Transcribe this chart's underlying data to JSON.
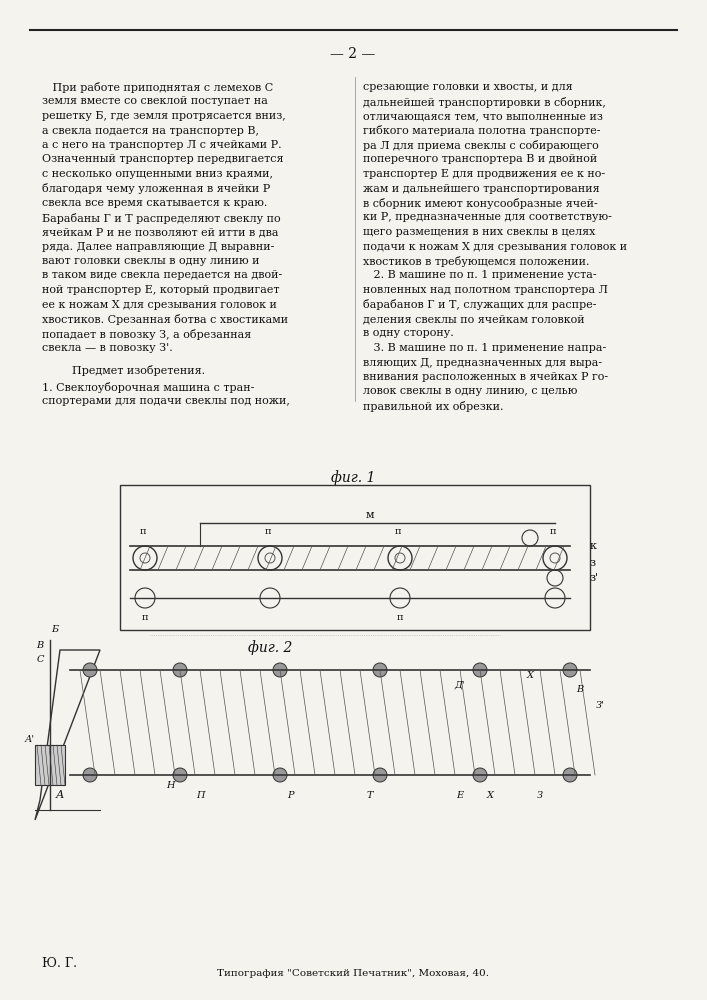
{
  "page_number": "2",
  "bg_color": "#f5f3ee",
  "top_line_color": "#222222",
  "text_color": "#111111",
  "left_column_text": [
    "   При работе приподнятая с лемехов С",
    "земля вместе со свеклой поступает на",
    "решетку Б, где земля протрясается вниз,",
    "а свекла подается на транспортер В,",
    "а с него на транспортер Л с ячейками Р.",
    "Означенный транспортер передвигается",
    "с несколько опущенными вниз краями,",
    "благодаря чему уложенная в ячейки Р",
    "свекла все время скатывается к краю.",
    "Барабаны Г и Т распределяют свеклу по",
    "ячейкам Р и не позволяют ей итти в два",
    "ряда. Далее направляющие Д выравни-",
    "вают головки свеклы в одну линию и",
    "в таком виде свекла передается на двой-",
    "ной транспортер Е, который продвигает",
    "ее к ножам Х для срезывания головок и",
    "хвостиков. Срезанная ботва с хвостиками",
    "попадает в повозку З, а обрезанная",
    "свекла — в повозку З'."
  ],
  "right_column_text": [
    "срезающие головки и хвосты, и для",
    "дальнейшей транспортировки в сборник,",
    "отличающаяся тем, что выполненные из",
    "гибкого материала полотна транспорте-",
    "ра Л для приема свеклы с собирающего",
    "поперечного транспортера В и двойной",
    "транспортер Е для продвижения ее к но-",
    "жам и дальнейшего транспортирования",
    "в сборник имеют конусообразные ячей-",
    "ки Р, предназначенные для соответствую-",
    "щего размещения в них свеклы в целях",
    "подачи к ножам Х для срезывания головок и",
    "хвостиков в требующемся положении.",
    "   2. В машине по п. 1 применение уста-",
    "новленных над полотном транспортера Л",
    "барабанов Г и Т, служащих для распре-",
    "деления свеклы по ячейкам головкой",
    "в одну сторону.",
    "   3. В машине по п. 1 применение напра-",
    "вляющих Д, предназначенных для выра-",
    "внивания расположенных в ячейках Р го-",
    "ловок свеклы в одну линию, с целью",
    "правильной их обрезки."
  ],
  "predmet_title": "Предмет изобретения.",
  "predmet_item1": "1. Свеклоуборочная машина с тран-\nспортерами для подачи свеклы под ножи,",
  "fig1_label": "фиг. 1",
  "fig2_label": "фиг. 2",
  "footer_left": "Ю. Г.",
  "footer_center": "Типография \"Советский Печатник\", Моховая, 40."
}
